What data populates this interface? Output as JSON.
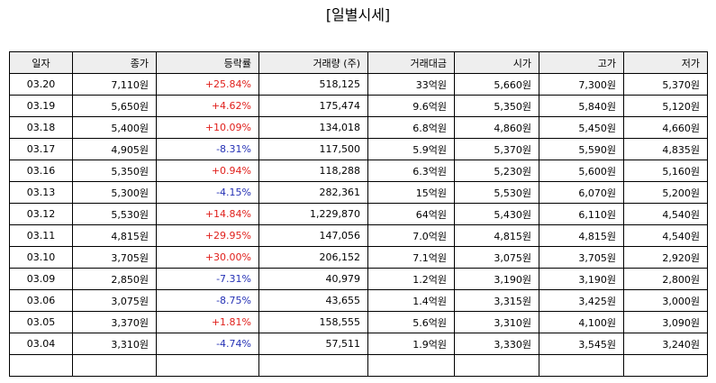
{
  "title": "[일별시세]",
  "columns": {
    "date": "일자",
    "close": "종가",
    "change": "등락률",
    "volume": "거래량 (주)",
    "amount": "거래대금",
    "open": "시가",
    "high": "고가",
    "low": "저가"
  },
  "rows": [
    {
      "date": "03.20",
      "close": "7,110원",
      "change": "+25.84%",
      "direction": "up",
      "volume": "518,125",
      "amount": "33억원",
      "open": "5,660원",
      "high": "7,300원",
      "low": "5,370원"
    },
    {
      "date": "03.19",
      "close": "5,650원",
      "change": "+4.62%",
      "direction": "up",
      "volume": "175,474",
      "amount": "9.6억원",
      "open": "5,350원",
      "high": "5,840원",
      "low": "5,120원"
    },
    {
      "date": "03.18",
      "close": "5,400원",
      "change": "+10.09%",
      "direction": "up",
      "volume": "134,018",
      "amount": "6.8억원",
      "open": "4,860원",
      "high": "5,450원",
      "low": "4,660원"
    },
    {
      "date": "03.17",
      "close": "4,905원",
      "change": "-8.31%",
      "direction": "down",
      "volume": "117,500",
      "amount": "5.9억원",
      "open": "5,370원",
      "high": "5,590원",
      "low": "4,835원"
    },
    {
      "date": "03.16",
      "close": "5,350원",
      "change": "+0.94%",
      "direction": "up",
      "volume": "118,288",
      "amount": "6.3억원",
      "open": "5,230원",
      "high": "5,600원",
      "low": "5,160원"
    },
    {
      "date": "03.13",
      "close": "5,300원",
      "change": "-4.15%",
      "direction": "down",
      "volume": "282,361",
      "amount": "15억원",
      "open": "5,530원",
      "high": "6,070원",
      "low": "5,200원"
    },
    {
      "date": "03.12",
      "close": "5,530원",
      "change": "+14.84%",
      "direction": "up",
      "volume": "1,229,870",
      "amount": "64억원",
      "open": "5,430원",
      "high": "6,110원",
      "low": "4,540원"
    },
    {
      "date": "03.11",
      "close": "4,815원",
      "change": "+29.95%",
      "direction": "up",
      "volume": "147,056",
      "amount": "7.0억원",
      "open": "4,815원",
      "high": "4,815원",
      "low": "4,540원"
    },
    {
      "date": "03.10",
      "close": "3,705원",
      "change": "+30.00%",
      "direction": "up",
      "volume": "206,152",
      "amount": "7.1억원",
      "open": "3,075원",
      "high": "3,705원",
      "low": "2,920원"
    },
    {
      "date": "03.09",
      "close": "2,850원",
      "change": "-7.31%",
      "direction": "down",
      "volume": "40,979",
      "amount": "1.2억원",
      "open": "3,190원",
      "high": "3,190원",
      "low": "2,800원"
    },
    {
      "date": "03.06",
      "close": "3,075원",
      "change": "-8.75%",
      "direction": "down",
      "volume": "43,655",
      "amount": "1.4억원",
      "open": "3,315원",
      "high": "3,425원",
      "low": "3,000원"
    },
    {
      "date": "03.05",
      "close": "3,370원",
      "change": "+1.81%",
      "direction": "up",
      "volume": "158,555",
      "amount": "5.6억원",
      "open": "3,310원",
      "high": "4,100원",
      "low": "3,090원"
    },
    {
      "date": "03.04",
      "close": "3,310원",
      "change": "-4.74%",
      "direction": "down",
      "volume": "57,511",
      "amount": "1.9억원",
      "open": "3,330원",
      "high": "3,545원",
      "low": "3,240원"
    }
  ],
  "colors": {
    "up": "#e0201c",
    "down": "#2531b5",
    "header_bg": "#eeeeee"
  }
}
